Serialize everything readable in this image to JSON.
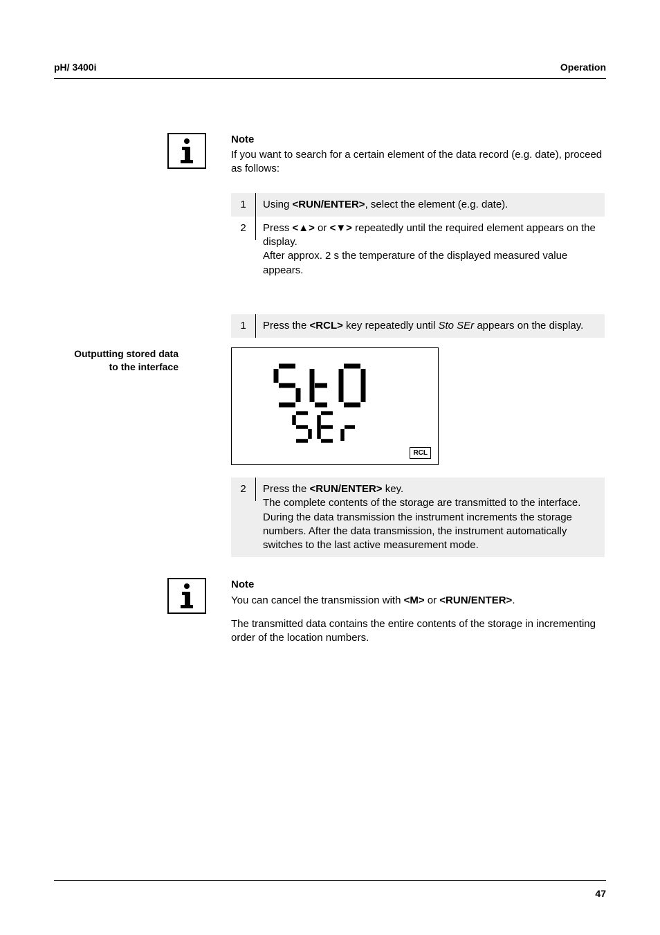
{
  "header": {
    "left": "pH/ 3400i",
    "right": "Operation"
  },
  "note1": {
    "heading": "Note",
    "body": "If you want to search for a certain element of the data record (e.g. date), proceed as follows:"
  },
  "searchSteps": [
    {
      "num": "1",
      "shaded": true,
      "html": "Using <b>&lt;RUN/ENTER&gt;</b>, select the element (e.g. date)."
    },
    {
      "num": "2",
      "shaded": false,
      "html": "Press <b>&lt;▲&gt;</b> or <b>&lt;▼&gt;</b> repeatedly until the required element appears on the display.<br>After approx. 2 s the temperature of the displayed measured value appears."
    }
  ],
  "sideHeading": {
    "line1": "Outputting stored data",
    "line2": "to the interface"
  },
  "outputSteps": [
    {
      "num": "1",
      "shaded": true,
      "html": "Press the <b>&lt;RCL&gt;</b> key repeatedly until <i>Sto SEr</i> appears on the display."
    },
    {
      "num": "2",
      "shaded": true,
      "html": "Press the <b>&lt;RUN/ENTER&gt;</b> key.<br>The complete contents of the storage are transmitted to the interface. During the data transmission the instrument increments the storage numbers. After the data transmission, the instrument automatically switches to the last active measurement mode."
    }
  ],
  "display": {
    "top": "StO",
    "bottom": "SEr",
    "badge": "RCL"
  },
  "note2": {
    "heading": "Note",
    "line1_html": "You can cancel the transmission with <b>&lt;M&gt;</b> or <b>&lt;RUN/ENTER&gt;</b>.",
    "line2": "The transmitted data contains the entire contents of the storage in incrementing order of the location numbers."
  },
  "pageNumber": "47",
  "style": {
    "shadedBg": "#eeeeee",
    "segmentColor": "#000000"
  }
}
